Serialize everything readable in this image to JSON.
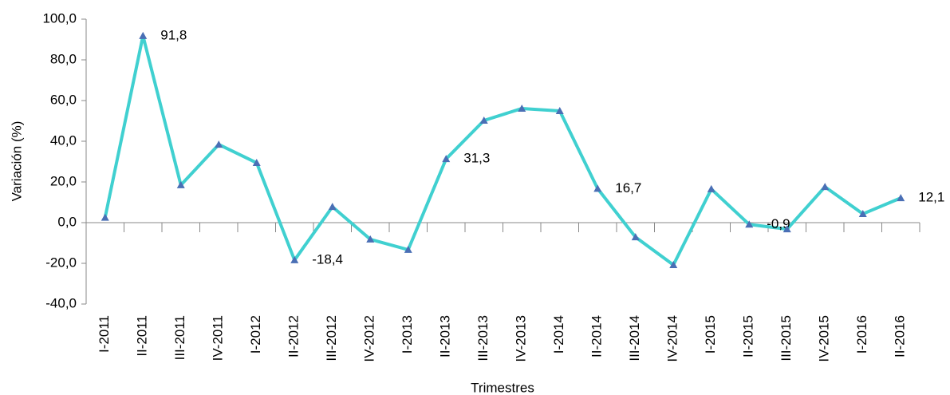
{
  "chart_data": {
    "type": "line",
    "x_label": "Trimestres",
    "y_label": "Variación (%)",
    "categories": [
      "I-2011",
      "II-2011",
      "III-2011",
      "IV-2011",
      "I-2012",
      "II-2012",
      "III-2012",
      "IV-2012",
      "I-2013",
      "II-2013",
      "III-2013",
      "IV-2013",
      "I-2014",
      "II-2014",
      "III-2014",
      "IV-2014",
      "I-2015",
      "II-2015",
      "III-2015",
      "IV-2015",
      "I-2016",
      "II-2016"
    ],
    "series": [
      {
        "color": "#40d0d0",
        "marker_color": "#4a6fb5",
        "values": [
          2.5,
          91.8,
          18.5,
          38.4,
          29.4,
          -18.4,
          7.8,
          -8.2,
          -13.3,
          31.3,
          50.2,
          56.1,
          54.9,
          16.7,
          -7.1,
          -20.8,
          16.5,
          -0.9,
          -3.2,
          17.6,
          4.3,
          12.1
        ],
        "value_labels": [
          null,
          "91,8",
          null,
          null,
          null,
          "-18,4",
          null,
          null,
          null,
          "31,3",
          null,
          null,
          null,
          "16,7",
          null,
          null,
          null,
          "-0,9",
          null,
          null,
          null,
          "12,1"
        ]
      }
    ],
    "ylim": [
      -40,
      100
    ],
    "yticks": [
      {
        "value": -40,
        "label": "-40,0"
      },
      {
        "value": -20,
        "label": "-20,0"
      },
      {
        "value": 0,
        "label": "0,0"
      },
      {
        "value": 20,
        "label": "20,0"
      },
      {
        "value": 40,
        "label": "40,0"
      },
      {
        "value": 60,
        "label": "60,0"
      },
      {
        "value": 80,
        "label": "80,0"
      },
      {
        "value": 100,
        "label": "100,0"
      }
    ]
  }
}
